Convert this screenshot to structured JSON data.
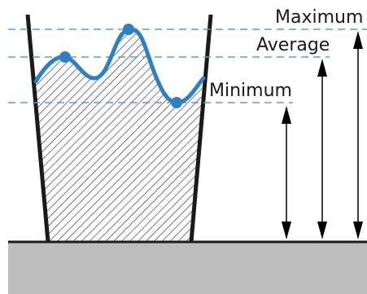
{
  "diagram": {
    "labels": {
      "maximum": "Maximum",
      "average": "Average",
      "minimum": "Minimum"
    },
    "colors": {
      "profile_line": "#2f7fc1",
      "dashed_reference": "#5b9bd5",
      "container_stroke": "#1a1a1a",
      "ground_fill": "#bdbdbd",
      "hatch": "#222222",
      "arrow": "#000000"
    }
  }
}
